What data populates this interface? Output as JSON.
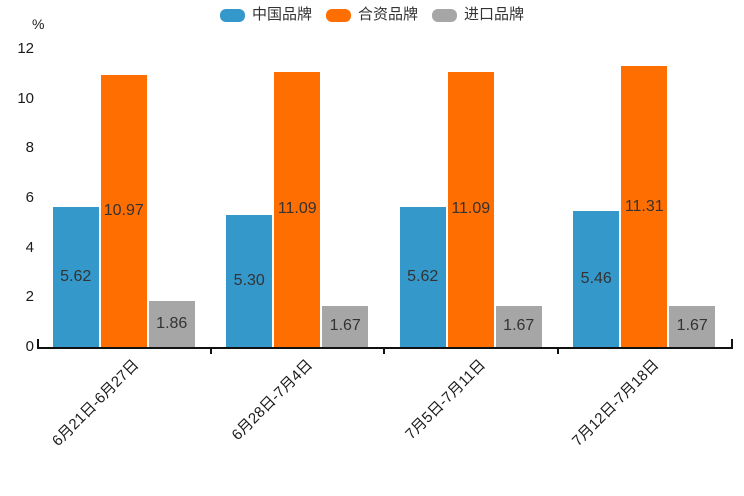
{
  "chart_data": {
    "type": "bar",
    "title": "",
    "ylabel": "%",
    "xlabel": "",
    "ylim": [
      0,
      12
    ],
    "yticks": [
      0,
      2,
      4,
      6,
      8,
      10,
      12
    ],
    "grid": false,
    "legend_position": "top",
    "value_labels": "inside-center",
    "categories": [
      "6月21日-6月27日",
      "6月28日-7月4日",
      "7月5日-7月11日",
      "7月12日-7月18日"
    ],
    "series": [
      {
        "key": "china-brand",
        "name": "中国品牌",
        "color": "#3498cb",
        "values": [
          5.62,
          5.3,
          5.62,
          5.46
        ]
      },
      {
        "key": "joint-venture-brand",
        "name": "合资品牌",
        "color": "#ff6e00",
        "values": [
          10.97,
          11.09,
          11.09,
          11.31
        ]
      },
      {
        "key": "import-brand",
        "name": "进口品牌",
        "color": "#a6a6a6",
        "values": [
          1.86,
          1.67,
          1.67,
          1.67
        ]
      }
    ]
  }
}
